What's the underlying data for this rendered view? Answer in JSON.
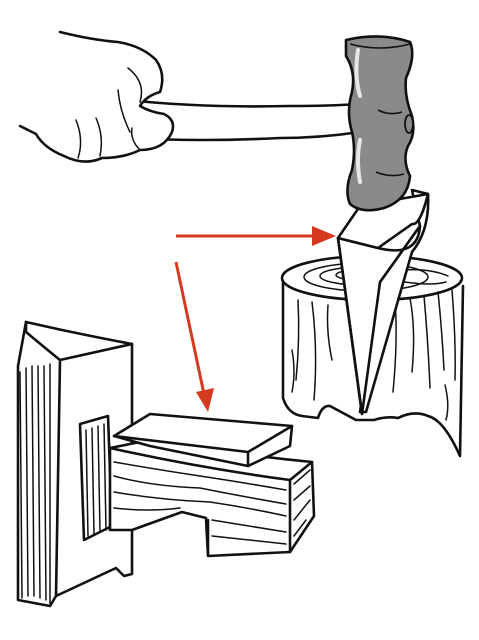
{
  "figure": {
    "colors": {
      "ink": "#111111",
      "paper": "#ffffff",
      "hammer_head": "#8a8a8a",
      "arrow": "#d63a1e"
    },
    "parts": [
      "hand",
      "hammer",
      "wedge",
      "log",
      "block-stack",
      "thin-wedge",
      "arrow-to-wedge",
      "arrow-to-thin-wedge"
    ]
  }
}
